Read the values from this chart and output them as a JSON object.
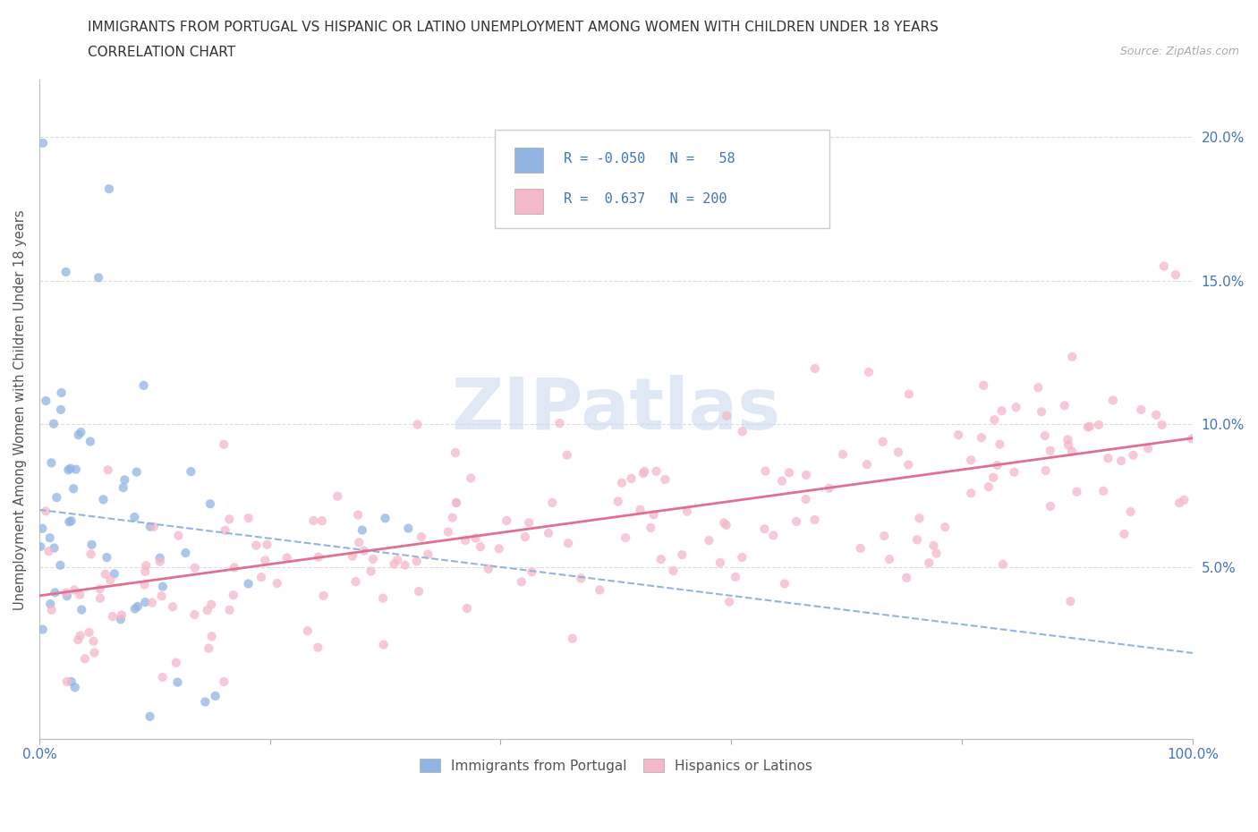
{
  "title_line1": "IMMIGRANTS FROM PORTUGAL VS HISPANIC OR LATINO UNEMPLOYMENT AMONG WOMEN WITH CHILDREN UNDER 18 YEARS",
  "title_line2": "CORRELATION CHART",
  "source_text": "Source: ZipAtlas.com",
  "ylabel": "Unemployment Among Women with Children Under 18 years",
  "xlim": [
    0,
    100
  ],
  "ylim": [
    -1,
    22
  ],
  "ytick_vals": [
    5,
    10,
    15,
    20
  ],
  "ytick_labels": [
    "5.0%",
    "10.0%",
    "15.0%",
    "20.0%"
  ],
  "blue_color": "#92b4e3",
  "pink_color": "#f4b8c8",
  "blue_line_color": "#92b4e3",
  "pink_line_color": "#e07090",
  "blue_R": -0.05,
  "blue_N": 58,
  "pink_R": 0.637,
  "pink_N": 200,
  "grid_color": "#dddddd",
  "background_color": "#ffffff",
  "tick_label_color": "#4472c4",
  "watermark_color": "#ccd9f0"
}
